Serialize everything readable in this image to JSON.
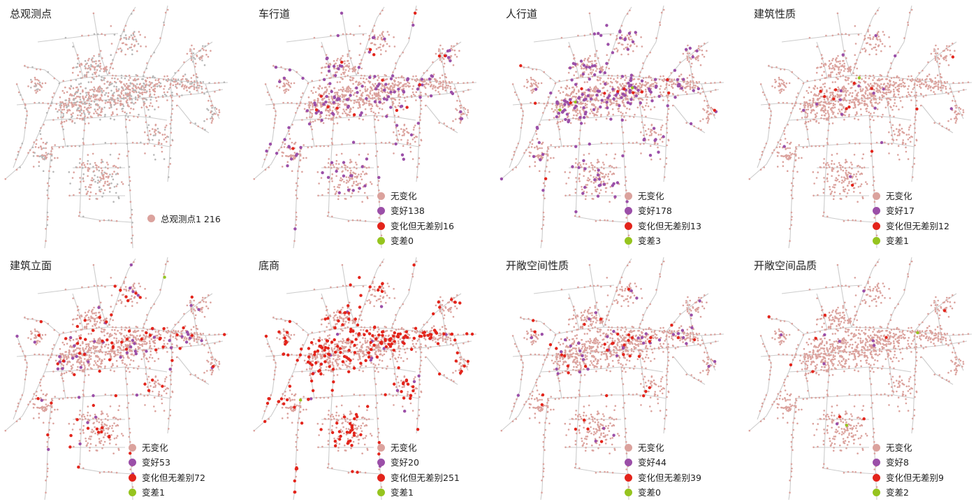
{
  "colors": {
    "unchanged": "#dba29d",
    "better": "#9b4fa8",
    "changed_no_diff": "#e3241b",
    "worse": "#96c41f",
    "road": "#cccccc",
    "survey_point": "#b6b6b6"
  },
  "legend_labels": {
    "unchanged": "无变化",
    "better": "变好",
    "changed_no_diff": "变化但无差别",
    "worse": "变差"
  },
  "panels": [
    {
      "title": "总观测点",
      "type": "survey",
      "total_label": "总观测点1 216",
      "counts": null
    },
    {
      "title": "车行道",
      "type": "change",
      "counts": {
        "better": 138,
        "changed_no_diff": 16,
        "worse": 0
      },
      "labels": {
        "unchanged": "无变化",
        "better": "变好138",
        "changed_no_diff": "变化但无差别16",
        "worse": "变差0"
      }
    },
    {
      "title": "人行道",
      "type": "change",
      "counts": {
        "better": 178,
        "changed_no_diff": 13,
        "worse": 3
      },
      "labels": {
        "unchanged": "无变化",
        "better": "变好178",
        "changed_no_diff": "变化但无差别13",
        "worse": "变差3"
      }
    },
    {
      "title": "建筑性质",
      "type": "change",
      "counts": {
        "better": 17,
        "changed_no_diff": 12,
        "worse": 1
      },
      "labels": {
        "unchanged": "无变化",
        "better": "变好17",
        "changed_no_diff": "变化但无差别12",
        "worse": "变差1"
      }
    },
    {
      "title": "建筑立面",
      "type": "change",
      "counts": {
        "better": 53,
        "changed_no_diff": 72,
        "worse": 1
      },
      "labels": {
        "unchanged": "无变化",
        "better": "变好53",
        "changed_no_diff": "变化但无差别72",
        "worse": "变差1"
      }
    },
    {
      "title": "底商",
      "type": "change",
      "counts": {
        "better": 20,
        "changed_no_diff": 251,
        "worse": 1
      },
      "labels": {
        "unchanged": "无变化",
        "better": "变好20",
        "changed_no_diff": "变化但无差别251",
        "worse": "变差1"
      }
    },
    {
      "title": "开敞空间性质",
      "type": "change",
      "counts": {
        "better": 44,
        "changed_no_diff": 39,
        "worse": 0
      },
      "labels": {
        "unchanged": "无变化",
        "better": "变好44",
        "changed_no_diff": "变化但无差别39",
        "worse": "变差0"
      }
    },
    {
      "title": "开敞空间品质",
      "type": "change",
      "counts": {
        "better": 8,
        "changed_no_diff": 9,
        "worse": 2
      },
      "labels": {
        "unchanged": "无变化",
        "better": "变好8",
        "changed_no_diff": "变化但无差别9",
        "worse": "变差2"
      }
    }
  ]
}
